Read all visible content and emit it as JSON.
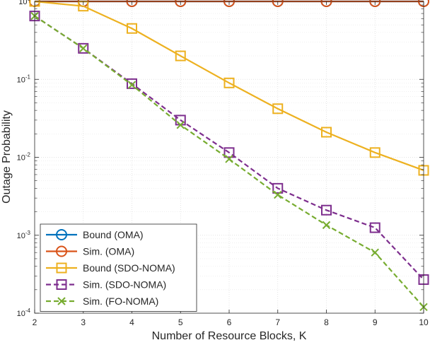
{
  "chart_data": {
    "type": "line",
    "title": "",
    "xlabel": "Number of Resource Blocks, K",
    "ylabel": "Outage Probability",
    "xlim": [
      2,
      10
    ],
    "ylim": [
      0.0001,
      1
    ],
    "yscale": "log",
    "grid": true,
    "legend_position": "bottom-left",
    "x": [
      2,
      3,
      4,
      5,
      6,
      7,
      8,
      9,
      10
    ],
    "x_tick_labels": [
      "2",
      "3",
      "4",
      "5",
      "6",
      "7",
      "8",
      "9",
      "10"
    ],
    "y_ticks": [
      {
        "value": 1,
        "base": "10",
        "exp": "0"
      },
      {
        "value": 0.1,
        "base": "10",
        "exp": "-1"
      },
      {
        "value": 0.01,
        "base": "10",
        "exp": "-2"
      },
      {
        "value": 0.001,
        "base": "10",
        "exp": "-3"
      },
      {
        "value": 0.0001,
        "base": "10",
        "exp": "-4"
      }
    ],
    "series": [
      {
        "name": "Bound (OMA)",
        "color": "#0072BD",
        "marker": "circle",
        "dash": "solid",
        "values": [
          1,
          1,
          1,
          1,
          1,
          1,
          1,
          1,
          1
        ]
      },
      {
        "name": "Sim. (OMA)",
        "color": "#D95319",
        "marker": "circle",
        "dash": "solid",
        "values": [
          1,
          1,
          1,
          1,
          1,
          1,
          1,
          1,
          1
        ]
      },
      {
        "name": "Bound (SDO-NOMA)",
        "color": "#EDB120",
        "marker": "square",
        "dash": "solid",
        "values": [
          1,
          0.87,
          0.45,
          0.2,
          0.09,
          0.042,
          0.021,
          0.0115,
          0.0068
        ]
      },
      {
        "name": "Sim. (SDO-NOMA)",
        "color": "#7E2F8E",
        "marker": "square",
        "dash": "dashed",
        "values": [
          0.65,
          0.25,
          0.088,
          0.03,
          0.0115,
          0.004,
          0.0021,
          0.00125,
          0.00027
        ]
      },
      {
        "name": "Sim. (FO-NOMA)",
        "color": "#77AC30",
        "marker": "x",
        "dash": "dashed",
        "values": [
          0.65,
          0.25,
          0.085,
          0.026,
          0.0095,
          0.0033,
          0.00135,
          0.0006,
          0.00012
        ]
      }
    ]
  }
}
